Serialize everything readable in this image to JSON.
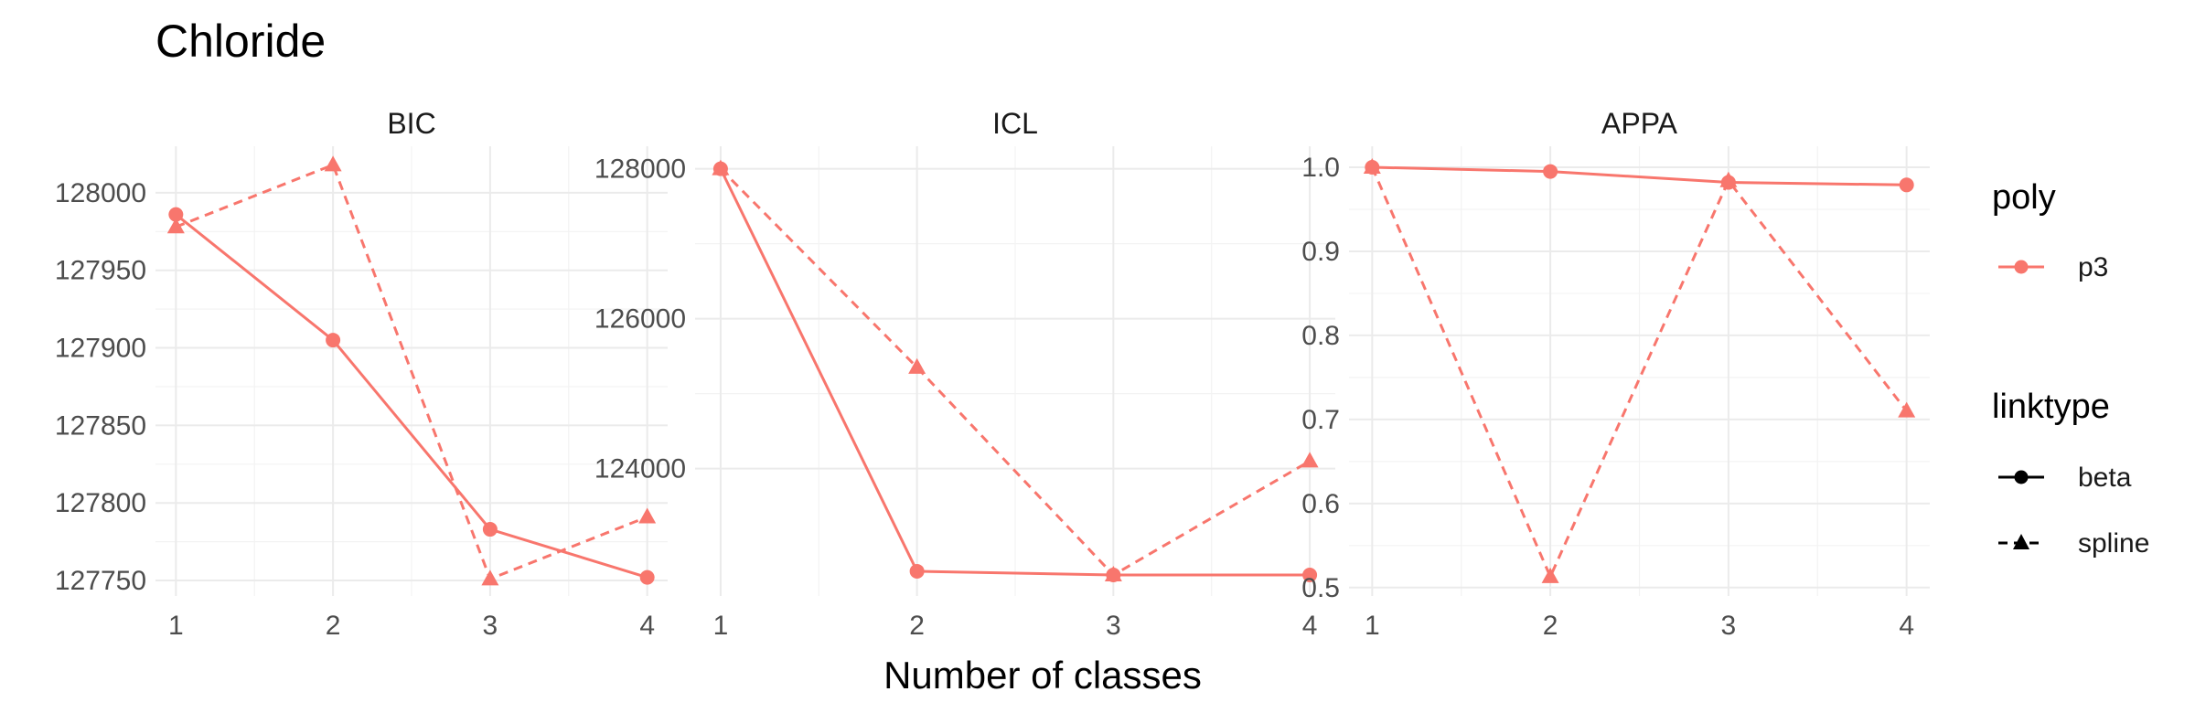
{
  "chart_data": {
    "type": "line",
    "title": "Chloride",
    "xlabel": "Number of classes",
    "ylabel": "",
    "grid": true,
    "legend_position": "right",
    "colors": {
      "series": "#f8766d"
    },
    "legend": {
      "poly": {
        "title": "poly",
        "entries": [
          "p3"
        ]
      },
      "linktype": {
        "title": "linktype",
        "entries": [
          "beta",
          "spline"
        ]
      }
    },
    "panels": [
      {
        "name": "BIC",
        "x": [
          1,
          2,
          3,
          4
        ],
        "xlim": [
          0.87,
          4.13
        ],
        "ylim": [
          127740,
          128030
        ],
        "yticks": [
          127750,
          127800,
          127850,
          127900,
          127950,
          128000
        ],
        "yticklabels": [
          "127750",
          "127800",
          "127850",
          "127900",
          "127950",
          "128000"
        ],
        "series": [
          {
            "name": "beta",
            "linestyle": "solid",
            "marker": "circle",
            "values": [
              127986,
              127905,
              127783,
              127752
            ]
          },
          {
            "name": "spline",
            "linestyle": "dashed",
            "marker": "triangle",
            "values": [
              127978,
              128018,
              127751,
              127791
            ]
          }
        ]
      },
      {
        "name": "ICL",
        "x": [
          1,
          2,
          3,
          4
        ],
        "xlim": [
          0.87,
          4.13
        ],
        "ylim": [
          122300,
          128300
        ],
        "yticks": [
          124000,
          126000,
          128000
        ],
        "yticklabels": [
          "124000",
          "126000",
          "128000"
        ],
        "series": [
          {
            "name": "beta",
            "linestyle": "solid",
            "marker": "circle",
            "values": [
              128000,
              122630,
              122580,
              122580
            ]
          },
          {
            "name": "spline",
            "linestyle": "dashed",
            "marker": "triangle",
            "values": [
              128000,
              125350,
              122580,
              124100
            ]
          }
        ]
      },
      {
        "name": "APPA",
        "x": [
          1,
          2,
          3,
          4
        ],
        "xlim": [
          0.87,
          4.13
        ],
        "ylim": [
          0.49,
          1.025
        ],
        "yticks": [
          0.5,
          0.6,
          0.7,
          0.8,
          0.9,
          1.0
        ],
        "yticklabels": [
          "0.5",
          "0.6",
          "0.7",
          "0.8",
          "0.9",
          "1.0"
        ],
        "series": [
          {
            "name": "beta",
            "linestyle": "solid",
            "marker": "circle",
            "values": [
              1.0,
              0.995,
              0.982,
              0.979
            ]
          },
          {
            "name": "spline",
            "linestyle": "dashed",
            "marker": "triangle",
            "values": [
              1.0,
              0.513,
              0.984,
              0.71
            ]
          }
        ]
      }
    ]
  }
}
